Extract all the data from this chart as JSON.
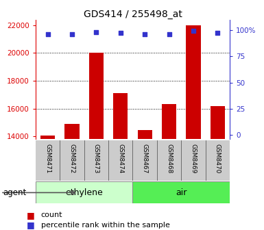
{
  "title": "GDS414 / 255498_at",
  "categories": [
    "GSM8471",
    "GSM8472",
    "GSM8473",
    "GSM8474",
    "GSM8467",
    "GSM8468",
    "GSM8469",
    "GSM8470"
  ],
  "counts": [
    14050,
    14900,
    20000,
    17100,
    14450,
    16300,
    22000,
    16200
  ],
  "percentile_ranks": [
    96,
    96,
    98,
    97,
    96,
    96,
    99,
    97
  ],
  "bar_color": "#cc0000",
  "dot_color": "#3333cc",
  "ylim_left": [
    13800,
    22400
  ],
  "yticks_left": [
    14000,
    16000,
    18000,
    20000,
    22000
  ],
  "ylim_right": [
    -4,
    110
  ],
  "yticks_right": [
    0,
    25,
    50,
    75,
    100
  ],
  "ytick_labels_right": [
    "0",
    "25",
    "50",
    "75",
    "100%"
  ],
  "groups": [
    {
      "label": "ethylene",
      "color_light": "#ccffcc",
      "color_dark": "#ccffcc"
    },
    {
      "label": "air",
      "color_light": "#55ee55",
      "color_dark": "#55ee55"
    }
  ],
  "agent_label": "agent",
  "legend_count_label": "count",
  "legend_percentile_label": "percentile rank within the sample",
  "left_tick_color": "#dd0000",
  "right_tick_color": "#3333cc",
  "grid_dotted_ticks": [
    16000,
    18000,
    20000
  ],
  "bar_width": 0.6,
  "xlabels_bg": "#cccccc",
  "separator_color": "#444444"
}
